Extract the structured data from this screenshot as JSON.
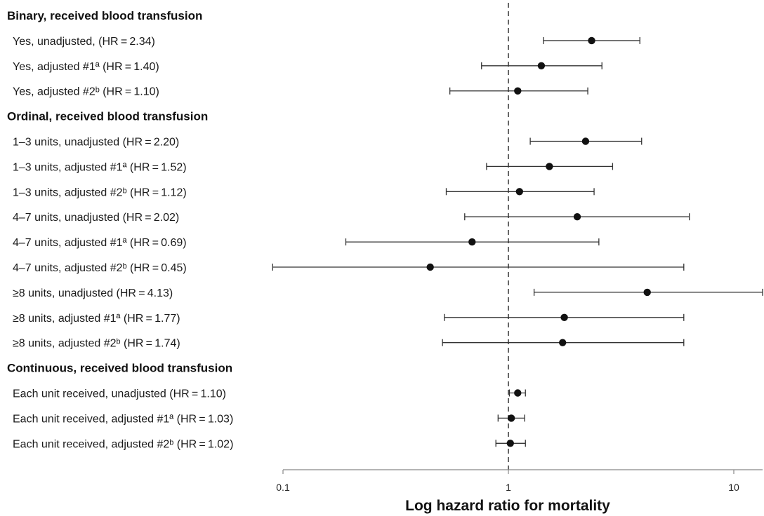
{
  "chart_data": {
    "type": "forest",
    "xscale": "log",
    "xlim": [
      0.1,
      14
    ],
    "xticks": [
      0.1,
      1,
      10
    ],
    "xtick_labels": [
      "0.1",
      "1",
      "10"
    ],
    "xlabel": "Log hazard ratio for mortality",
    "reference_line": 1,
    "grid": false,
    "colors": {
      "marker": "#111111",
      "line": "#333333",
      "reference": "#666666",
      "axis": "#888888"
    },
    "rows": [
      {
        "kind": "section",
        "label": "Binary, received blood transfusion"
      },
      {
        "kind": "estimate",
        "label": "Yes, unadjusted, (HR = 2.34)",
        "hr": 2.34,
        "ci_low": 1.43,
        "ci_high": 3.83
      },
      {
        "kind": "estimate",
        "label": "Yes, adjusted #1ª (HR = 1.40)",
        "hr": 1.4,
        "ci_low": 0.76,
        "ci_high": 2.6
      },
      {
        "kind": "estimate",
        "label": "Yes, adjusted #2ᵇ (HR = 1.10)",
        "hr": 1.1,
        "ci_low": 0.55,
        "ci_high": 2.25
      },
      {
        "kind": "section",
        "label": "Ordinal, received blood transfusion"
      },
      {
        "kind": "estimate",
        "label": "1–3 units, unadjusted (HR = 2.20)",
        "hr": 2.2,
        "ci_low": 1.25,
        "ci_high": 3.9
      },
      {
        "kind": "estimate",
        "label": "1–3 units, adjusted #1ª (HR = 1.52)",
        "hr": 1.52,
        "ci_low": 0.8,
        "ci_high": 2.9
      },
      {
        "kind": "estimate",
        "label": "1–3 units, adjusted #2ᵇ (HR = 1.12)",
        "hr": 1.12,
        "ci_low": 0.53,
        "ci_high": 2.4
      },
      {
        "kind": "estimate",
        "label": "4–7 units, unadjusted (HR = 2.02)",
        "hr": 2.02,
        "ci_low": 0.64,
        "ci_high": 6.35
      },
      {
        "kind": "estimate",
        "label": "4–7 units, adjusted #1ª (HR = 0.69)",
        "hr": 0.69,
        "ci_low": 0.19,
        "ci_high": 2.52
      },
      {
        "kind": "estimate",
        "label": "4–7 units, adjusted #2ᵇ (HR = 0.45)",
        "hr": 0.45,
        "ci_low": 0.09,
        "ci_high": 6.0
      },
      {
        "kind": "estimate",
        "label": "≥8 units, unadjusted (HR = 4.13)",
        "hr": 4.13,
        "ci_low": 1.3,
        "ci_high": 13.8
      },
      {
        "kind": "estimate",
        "label": "≥8 units, adjusted #1ª  (HR = 1.77)",
        "hr": 1.77,
        "ci_low": 0.52,
        "ci_high": 6.0
      },
      {
        "kind": "estimate",
        "label": "≥8 units, adjusted #2ᵇ (HR = 1.74)",
        "hr": 1.74,
        "ci_low": 0.51,
        "ci_high": 6.0
      },
      {
        "kind": "section",
        "label": "Continuous, received blood transfusion"
      },
      {
        "kind": "estimate",
        "label": "Each unit received, unadjusted (HR = 1.10)",
        "hr": 1.1,
        "ci_low": 1.01,
        "ci_high": 1.19
      },
      {
        "kind": "estimate",
        "label": "Each unit received, adjusted #1ª (HR = 1.03)",
        "hr": 1.03,
        "ci_low": 0.9,
        "ci_high": 1.18
      },
      {
        "kind": "estimate",
        "label": "Each unit received, adjusted #2ᵇ (HR = 1.02)",
        "hr": 1.02,
        "ci_low": 0.88,
        "ci_high": 1.19
      }
    ]
  }
}
